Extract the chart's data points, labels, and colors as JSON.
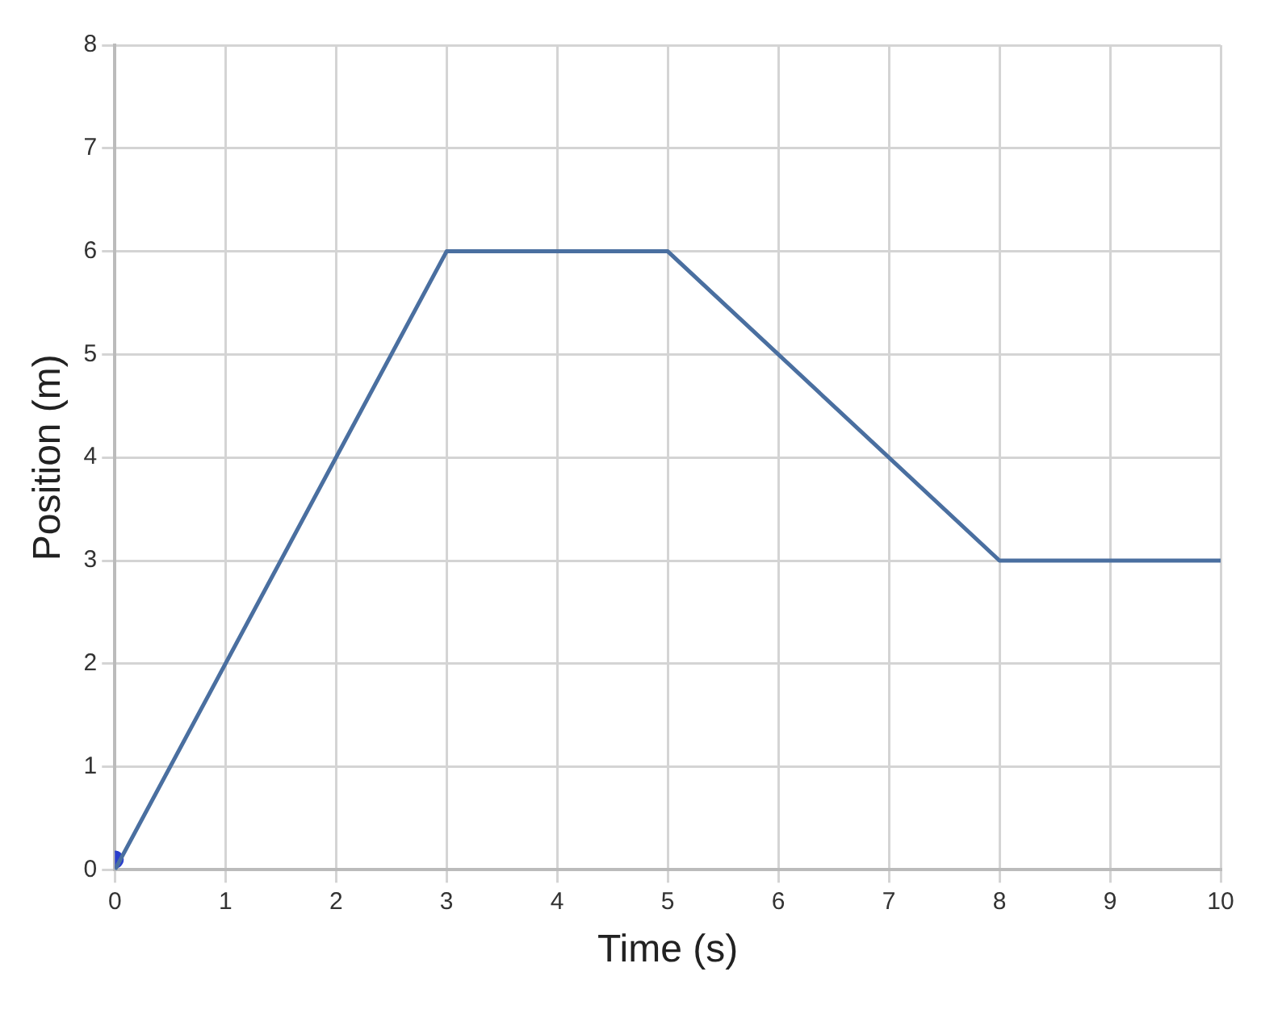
{
  "chart_data": {
    "type": "line",
    "xlabel": "Time (s)",
    "ylabel": "Position (m)",
    "xlim": [
      0,
      10
    ],
    "xticks": [
      0,
      1,
      2,
      3,
      4,
      5,
      6,
      7,
      8,
      9,
      10
    ],
    "ylim": [
      0,
      8
    ],
    "yticks": [
      0,
      1,
      2,
      3,
      4,
      5,
      6,
      7,
      8
    ],
    "grid": true,
    "legend": false,
    "marker": "none",
    "line_style": "solid",
    "series": [
      {
        "color": "#4a6fa0",
        "x": [
          0,
          3,
          5,
          8,
          10
        ],
        "values": [
          0,
          6,
          6,
          3,
          3
        ]
      },
      {
        "type": "scatter",
        "marker": "circle",
        "color": "#2b3fcc",
        "x": [
          0
        ],
        "values": [
          0.1
        ]
      }
    ]
  }
}
